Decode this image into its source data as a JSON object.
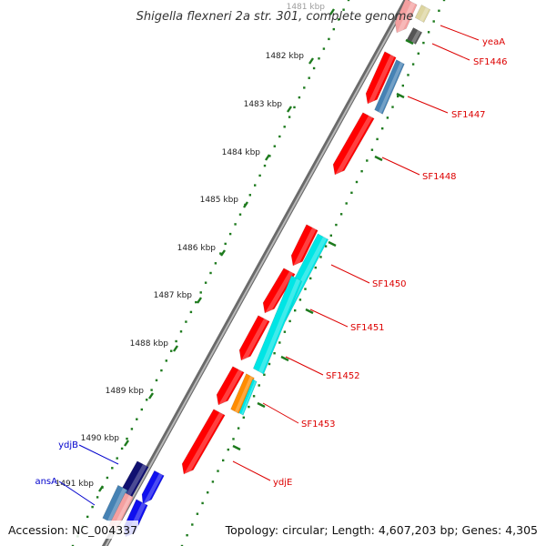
{
  "title": "Shigella flexneri 2a str. 301, complete genome",
  "accession": "Accession: NC_004337",
  "summary": "Topology: circular; Length: 4,607,203 bp; Genes: 4,305",
  "colors": {
    "backbone": "#8c8c8c",
    "tick_green": "#1d7a1d",
    "forward_label": "#dd0000",
    "reverse_label": "#0000cc",
    "cds_red": "#ff0000",
    "cds_cyan": "#00e5e5",
    "cds_orange": "#ff8c00",
    "cds_steel": "#4682b4",
    "cds_pink": "#f4a0a0",
    "cds_tan": "#ddd5a0",
    "cds_grey": "#555555",
    "cds_navy": "#101070",
    "cds_blue": "#1010ee"
  },
  "ticks": [
    {
      "label": "1481 kbp",
      "faded": true
    },
    {
      "label": "1482 kbp"
    },
    {
      "label": "1483 kbp"
    },
    {
      "label": "1484 kbp"
    },
    {
      "label": "1485 kbp"
    },
    {
      "label": "1486 kbp"
    },
    {
      "label": "1487 kbp"
    },
    {
      "label": "1488 kbp"
    },
    {
      "label": "1489 kbp"
    },
    {
      "label": "1490 kbp"
    },
    {
      "label": "1491 kbp"
    }
  ],
  "genes": [
    {
      "name": "yeaA",
      "strand": "forward"
    },
    {
      "name": "SF1446",
      "strand": "forward"
    },
    {
      "name": "SF1447",
      "strand": "forward"
    },
    {
      "name": "SF1448",
      "strand": "forward"
    },
    {
      "name": "SF1450",
      "strand": "forward"
    },
    {
      "name": "SF1451",
      "strand": "forward"
    },
    {
      "name": "SF1452",
      "strand": "forward"
    },
    {
      "name": "SF1453",
      "strand": "forward"
    },
    {
      "name": "ydjE",
      "strand": "forward"
    },
    {
      "name": "ydjB",
      "strand": "reverse"
    },
    {
      "name": "ansA",
      "strand": "reverse"
    }
  ]
}
